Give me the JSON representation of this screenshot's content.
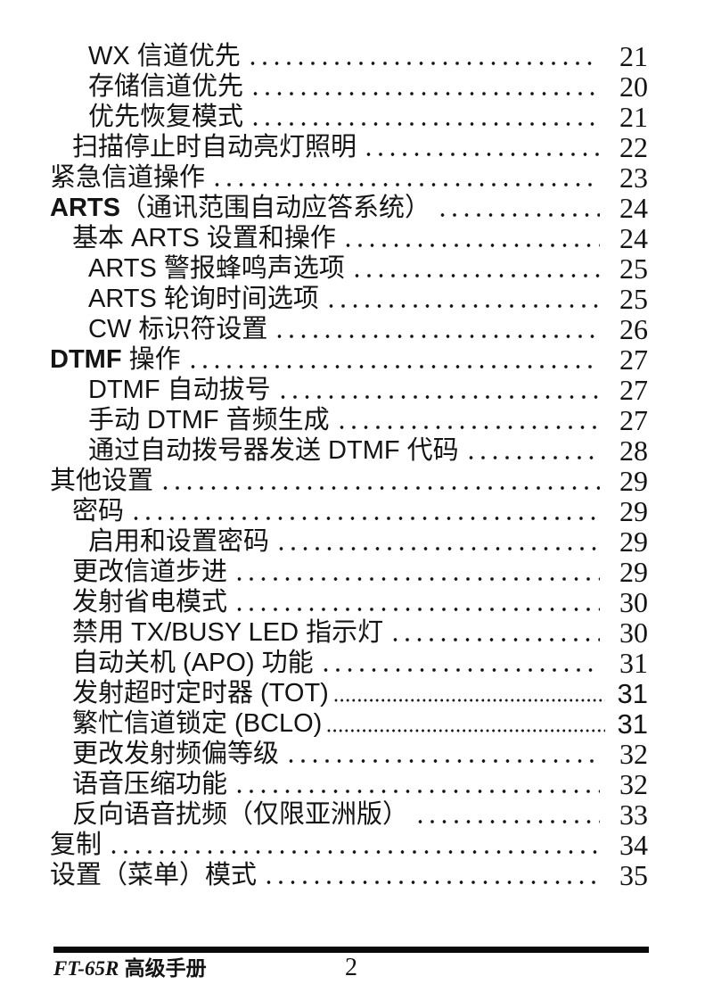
{
  "toc": {
    "entries": [
      {
        "prefix": "",
        "label": "WX 信道优先",
        "page": "21",
        "level": 2,
        "leader": "spaced",
        "num_style": "serif"
      },
      {
        "prefix": "",
        "label": "存储信道优先",
        "page": "20",
        "level": 2,
        "leader": "spaced",
        "num_style": "serif"
      },
      {
        "prefix": "",
        "label": "优先恢复模式",
        "page": "21",
        "level": 2,
        "leader": "spaced",
        "num_style": "serif"
      },
      {
        "prefix": "",
        "label": "扫描停止时自动亮灯照明",
        "page": "22",
        "level": 1,
        "leader": "spaced",
        "num_style": "serif"
      },
      {
        "prefix": "",
        "label": "紧急信道操作",
        "page": "23",
        "level": 0,
        "leader": "spaced",
        "num_style": "serif"
      },
      {
        "prefix": "ARTS",
        "label": "（通讯范围自动应答系统）",
        "page": "24",
        "level": 0,
        "leader": "spaced",
        "num_style": "serif"
      },
      {
        "prefix": "",
        "label": "基本 ARTS 设置和操作",
        "page": "24",
        "level": 1,
        "leader": "spaced",
        "num_style": "serif"
      },
      {
        "prefix": "",
        "label": "ARTS 警报蜂鸣声选项",
        "page": "25",
        "level": 2,
        "leader": "spaced",
        "num_style": "serif"
      },
      {
        "prefix": "",
        "label": "ARTS 轮询时间选项",
        "page": "25",
        "level": 2,
        "leader": "spaced",
        "num_style": "serif"
      },
      {
        "prefix": "",
        "label": "CW 标识符设置",
        "page": "26",
        "level": 2,
        "leader": "spaced",
        "num_style": "serif"
      },
      {
        "prefix": "DTMF",
        "label": " 操作",
        "page": "27",
        "level": 0,
        "leader": "spaced",
        "num_style": "serif"
      },
      {
        "prefix": "",
        "label": "DTMF 自动拔号",
        "page": "27",
        "level": 2,
        "leader": "spaced",
        "num_style": "serif"
      },
      {
        "prefix": "",
        "label": "手动 DTMF 音频生成",
        "page": "27",
        "level": 2,
        "leader": "spaced",
        "num_style": "serif"
      },
      {
        "prefix": "",
        "label": "通过自动拨号器发送 DTMF 代码",
        "page": "28",
        "level": 2,
        "leader": "spaced",
        "num_style": "serif"
      },
      {
        "prefix": "",
        "label": "其他设置",
        "page": "29",
        "level": 0,
        "leader": "spaced",
        "num_style": "serif"
      },
      {
        "prefix": "",
        "label": "密码",
        "page": "29",
        "level": 1,
        "leader": "spaced",
        "num_style": "serif"
      },
      {
        "prefix": "",
        "label": "启用和设置密码",
        "page": "29",
        "level": 2,
        "leader": "spaced",
        "num_style": "serif"
      },
      {
        "prefix": "",
        "label": "更改信道步进",
        "page": "29",
        "level": 1,
        "leader": "spaced",
        "num_style": "serif"
      },
      {
        "prefix": "",
        "label": "发射省电模式",
        "page": "30",
        "level": 1,
        "leader": "spaced",
        "num_style": "serif"
      },
      {
        "prefix": "",
        "label": "禁用 TX/BUSY LED 指示灯",
        "page": "30",
        "level": 1,
        "leader": "spaced",
        "num_style": "serif"
      },
      {
        "prefix": "",
        "label": "自动关机 (APO) 功能",
        "page": "31",
        "level": 1,
        "leader": "spaced",
        "num_style": "serif"
      },
      {
        "prefix": "",
        "label": "发射超时定时器 (TOT)",
        "page": "31",
        "level": 1,
        "leader": "dense",
        "num_style": "sans"
      },
      {
        "prefix": "",
        "label": "繁忙信道锁定 (BCLO)",
        "page": "31",
        "level": 1,
        "leader": "dense",
        "num_style": "sans"
      },
      {
        "prefix": "",
        "label": "更改发射频偏等级",
        "page": "32",
        "level": 1,
        "leader": "spaced",
        "num_style": "serif"
      },
      {
        "prefix": "",
        "label": "语音压缩功能",
        "page": "32",
        "level": 1,
        "leader": "spaced",
        "num_style": "serif"
      },
      {
        "prefix": "",
        "label": "反向语音扰频（仅限亚洲版）",
        "page": "33",
        "level": 1,
        "leader": "spaced",
        "num_style": "serif"
      },
      {
        "prefix": "",
        "label": "复制",
        "page": "34",
        "level": 0,
        "leader": "spaced",
        "num_style": "serif"
      },
      {
        "prefix": "",
        "label": "设置（菜单）模式",
        "page": "35",
        "level": 0,
        "leader": "spaced",
        "num_style": "serif"
      }
    ]
  },
  "footer": {
    "model": "FT-65R",
    "doc_title": " 高级手册",
    "page_number": "2"
  }
}
